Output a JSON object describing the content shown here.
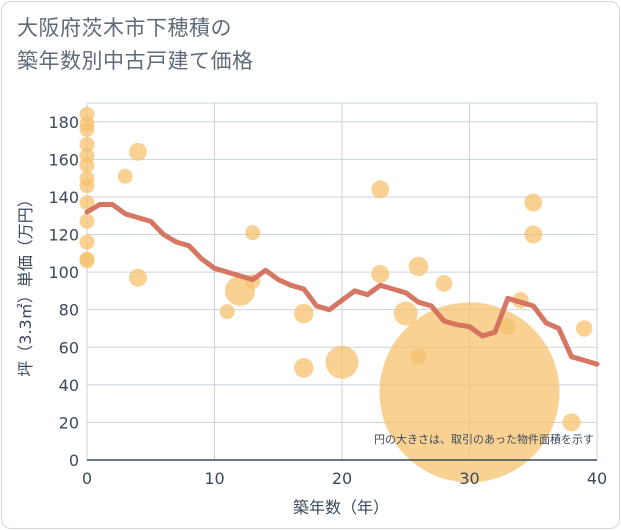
{
  "title_line1": "大阪府茨木市下穂積の",
  "title_line2": "築年数別中古戸建て価格",
  "chart_data": {
    "type": "scatter",
    "title": "大阪府茨木市下穂積の築年数別中古戸建て価格",
    "xlabel": "築年数（年）",
    "ylabel": "坪（3.3㎡）単価（万円）",
    "xlim": [
      0,
      40
    ],
    "ylim": [
      0,
      190
    ],
    "xticks": [
      0,
      10,
      20,
      30,
      40
    ],
    "yticks": [
      0,
      20,
      40,
      60,
      80,
      100,
      120,
      140,
      160,
      180
    ],
    "grid": true,
    "note": "円の大きさは、取引のあった物件面積を示す",
    "colors": {
      "bubble": "#f5c16f",
      "line": "#d4705c",
      "grid": "#c9d3de",
      "axis": "#3a4a5c"
    },
    "bubbles": [
      {
        "x": 0,
        "y": 184,
        "s": 1
      },
      {
        "x": 0,
        "y": 179,
        "s": 1
      },
      {
        "x": 0,
        "y": 176,
        "s": 1
      },
      {
        "x": 0,
        "y": 168,
        "s": 1
      },
      {
        "x": 0,
        "y": 162,
        "s": 1
      },
      {
        "x": 0,
        "y": 157,
        "s": 1
      },
      {
        "x": 0,
        "y": 150,
        "s": 1
      },
      {
        "x": 0,
        "y": 146,
        "s": 1
      },
      {
        "x": 0,
        "y": 137,
        "s": 1
      },
      {
        "x": 0,
        "y": 127,
        "s": 1
      },
      {
        "x": 0,
        "y": 116,
        "s": 1
      },
      {
        "x": 0,
        "y": 107,
        "s": 1
      },
      {
        "x": 0,
        "y": 106,
        "s": 1
      },
      {
        "x": 3,
        "y": 151,
        "s": 1
      },
      {
        "x": 4,
        "y": 164,
        "s": 1.2
      },
      {
        "x": 4,
        "y": 97,
        "s": 1.2
      },
      {
        "x": 11,
        "y": 79,
        "s": 1
      },
      {
        "x": 12,
        "y": 90,
        "s": 2
      },
      {
        "x": 13,
        "y": 95,
        "s": 1
      },
      {
        "x": 13,
        "y": 121,
        "s": 1
      },
      {
        "x": 17,
        "y": 78,
        "s": 1.3
      },
      {
        "x": 17,
        "y": 49,
        "s": 1.3
      },
      {
        "x": 20,
        "y": 52,
        "s": 2.2
      },
      {
        "x": 23,
        "y": 144,
        "s": 1.2
      },
      {
        "x": 23,
        "y": 99,
        "s": 1.2
      },
      {
        "x": 25,
        "y": 78,
        "s": 1.6
      },
      {
        "x": 26,
        "y": 103,
        "s": 1.3
      },
      {
        "x": 26,
        "y": 55,
        "s": 1.1
      },
      {
        "x": 28,
        "y": 94,
        "s": 1.1
      },
      {
        "x": 30,
        "y": 36,
        "s": 12
      },
      {
        "x": 33,
        "y": 71,
        "s": 1.1
      },
      {
        "x": 34,
        "y": 85,
        "s": 1.1
      },
      {
        "x": 35,
        "y": 137,
        "s": 1.2
      },
      {
        "x": 35,
        "y": 120,
        "s": 1.2
      },
      {
        "x": 38,
        "y": 20,
        "s": 1.2
      },
      {
        "x": 39,
        "y": 70,
        "s": 1.1
      }
    ],
    "line": {
      "x": [
        0,
        1,
        2,
        3,
        4,
        5,
        6,
        7,
        8,
        9,
        10,
        11,
        12,
        13,
        14,
        15,
        16,
        17,
        18,
        19,
        20,
        21,
        22,
        23,
        24,
        25,
        26,
        27,
        28,
        29,
        30,
        31,
        32,
        33,
        34,
        35,
        36,
        37,
        38,
        39,
        40
      ],
      "y": [
        132,
        136,
        136,
        131,
        129,
        127,
        120,
        116,
        114,
        107,
        102,
        100,
        98,
        96,
        101,
        96,
        93,
        91,
        82,
        80,
        85,
        90,
        88,
        93,
        91,
        89,
        84,
        82,
        74,
        72,
        71,
        66,
        68,
        86,
        84,
        82,
        73,
        70,
        55,
        53,
        51
      ]
    }
  }
}
